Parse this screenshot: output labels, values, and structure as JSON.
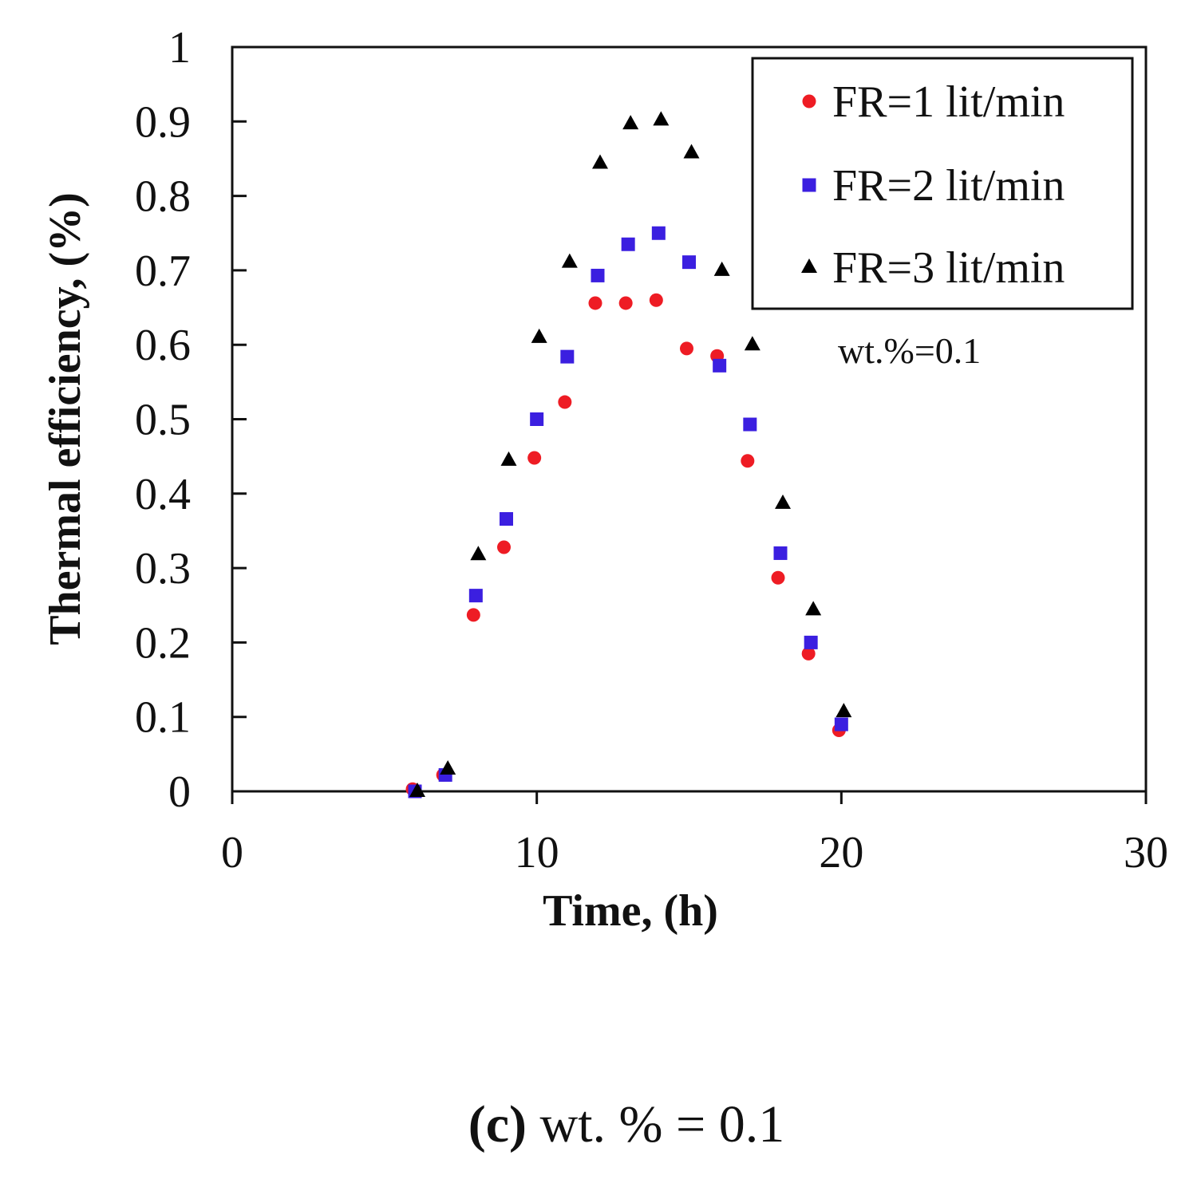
{
  "chart_data": {
    "type": "scatter",
    "title": "",
    "xlabel": "Time, (h)",
    "ylabel": "Thermal efficiency, (%)",
    "xlim": [
      0,
      30
    ],
    "ylim": [
      0,
      1
    ],
    "xticks": [
      0,
      10,
      20,
      30
    ],
    "xtick_labels": [
      "0",
      "10",
      "20",
      "30"
    ],
    "yticks": [
      0,
      0.1,
      0.2,
      0.3,
      0.4,
      0.5,
      0.6,
      0.7,
      0.8,
      0.9,
      1
    ],
    "ytick_labels": [
      "0",
      "0.1",
      "0.2",
      "0.3",
      "0.4",
      "0.5",
      "0.6",
      "0.7",
      "0.8",
      "0.9",
      "1"
    ],
    "grid": false,
    "legend_position": "top-right",
    "series": [
      {
        "name": "FR=1 lit/min",
        "marker": "circle",
        "color": "#ee1c24",
        "x": [
          6,
          7,
          8,
          9,
          10,
          11,
          12,
          13,
          14,
          15,
          16,
          17,
          18,
          19,
          20
        ],
        "y": [
          0.003,
          0.022,
          0.237,
          0.328,
          0.448,
          0.523,
          0.656,
          0.656,
          0.66,
          0.595,
          0.585,
          0.444,
          0.287,
          0.185,
          0.082
        ]
      },
      {
        "name": "FR=2 lit/min",
        "marker": "square",
        "color": "#3b1fe0",
        "x": [
          6,
          7,
          8,
          9,
          10,
          11,
          12,
          13,
          14,
          15,
          16,
          17,
          18,
          19,
          20
        ],
        "y": [
          0.0,
          0.022,
          0.263,
          0.366,
          0.5,
          0.584,
          0.693,
          0.735,
          0.75,
          0.711,
          0.572,
          0.493,
          0.32,
          0.2,
          0.09
        ]
      },
      {
        "name": "FR=3 lit/min",
        "marker": "triangle",
        "color": "#000000",
        "x": [
          6,
          7,
          8,
          9,
          10,
          11,
          12,
          13,
          14,
          15,
          16,
          17,
          18,
          19,
          20
        ],
        "y": [
          0.0,
          0.03,
          0.318,
          0.445,
          0.61,
          0.711,
          0.844,
          0.897,
          0.902,
          0.858,
          0.7,
          0.6,
          0.387,
          0.244,
          0.107
        ]
      }
    ],
    "annotations": [
      "wt.%=0.1"
    ]
  },
  "caption": {
    "label": "(c)",
    "text": " wt. % = 0.1"
  }
}
